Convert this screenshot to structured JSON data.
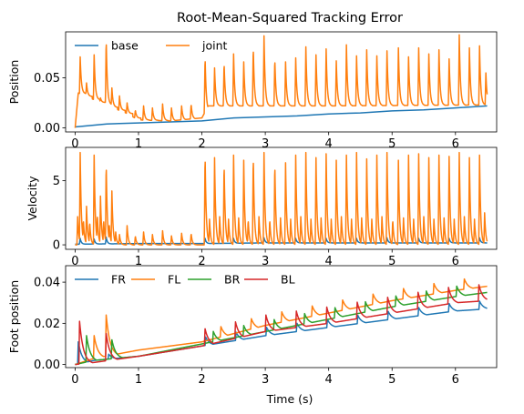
{
  "title": "Root-Mean-Squared Tracking Error",
  "xlabel": "Time (s)",
  "chart_data": [
    {
      "type": "line",
      "ylabel": "Position",
      "xlim": [
        -0.15,
        6.65
      ],
      "ylim": [
        -0.004,
        0.096
      ],
      "xticks": [
        0,
        1,
        2,
        3,
        4,
        5,
        6
      ],
      "yticks": [
        0.0,
        0.05
      ],
      "ytick_labels": [
        "0.00",
        "0.05"
      ],
      "legend_position": "top-left",
      "legend_columns": 2,
      "x_start": 0.0,
      "x_end": 6.5,
      "series": [
        {
          "name": "base",
          "color": "#1f77b4",
          "points": [
            [
              0.0,
              0.001
            ],
            [
              0.5,
              0.004
            ],
            [
              1.0,
              0.005
            ],
            [
              1.5,
              0.006
            ],
            [
              2.0,
              0.007
            ],
            [
              2.5,
              0.01
            ],
            [
              3.0,
              0.011
            ],
            [
              3.5,
              0.012
            ],
            [
              4.0,
              0.014
            ],
            [
              4.5,
              0.015
            ],
            [
              5.0,
              0.017
            ],
            [
              5.5,
              0.018
            ],
            [
              6.0,
              0.02
            ],
            [
              6.5,
              0.022
            ]
          ]
        },
        {
          "name": "joint",
          "color": "#ff7f0e",
          "baseline": [
            [
              0.0,
              0.0
            ],
            [
              0.05,
              0.035
            ],
            [
              0.6,
              0.02
            ],
            [
              0.8,
              0.015
            ],
            [
              1.0,
              0.008
            ],
            [
              1.5,
              0.007
            ],
            [
              2.0,
              0.01
            ],
            [
              2.1,
              0.022
            ],
            [
              4.0,
              0.022
            ],
            [
              6.5,
              0.023
            ]
          ],
          "peaks": [
            {
              "t": 0.08,
              "v": 0.071
            },
            {
              "t": 0.18,
              "v": 0.045
            },
            {
              "t": 0.3,
              "v": 0.073
            },
            {
              "t": 0.4,
              "v": 0.03
            },
            {
              "t": 0.49,
              "v": 0.09
            },
            {
              "t": 0.58,
              "v": 0.04
            },
            {
              "t": 0.7,
              "v": 0.032
            },
            {
              "t": 0.82,
              "v": 0.025
            },
            {
              "t": 0.95,
              "v": 0.018
            },
            {
              "t": 1.08,
              "v": 0.022
            },
            {
              "t": 1.22,
              "v": 0.02
            },
            {
              "t": 1.38,
              "v": 0.024
            },
            {
              "t": 1.52,
              "v": 0.02
            },
            {
              "t": 1.68,
              "v": 0.022
            },
            {
              "t": 1.83,
              "v": 0.024
            },
            {
              "t": 2.05,
              "v": 0.072
            },
            {
              "t": 2.2,
              "v": 0.06
            },
            {
              "t": 2.35,
              "v": 0.066
            },
            {
              "t": 2.5,
              "v": 0.074
            },
            {
              "t": 2.66,
              "v": 0.066
            },
            {
              "t": 2.81,
              "v": 0.082
            },
            {
              "t": 2.98,
              "v": 0.092
            },
            {
              "t": 3.15,
              "v": 0.07
            },
            {
              "t": 3.32,
              "v": 0.066
            },
            {
              "t": 3.48,
              "v": 0.07
            },
            {
              "t": 3.64,
              "v": 0.081
            },
            {
              "t": 3.8,
              "v": 0.073
            },
            {
              "t": 3.96,
              "v": 0.079
            },
            {
              "t": 4.12,
              "v": 0.067
            },
            {
              "t": 4.28,
              "v": 0.083
            },
            {
              "t": 4.44,
              "v": 0.072
            },
            {
              "t": 4.6,
              "v": 0.078
            },
            {
              "t": 4.76,
              "v": 0.072
            },
            {
              "t": 4.92,
              "v": 0.077
            },
            {
              "t": 5.1,
              "v": 0.08
            },
            {
              "t": 5.26,
              "v": 0.071
            },
            {
              "t": 5.42,
              "v": 0.08
            },
            {
              "t": 5.58,
              "v": 0.074
            },
            {
              "t": 5.74,
              "v": 0.078
            },
            {
              "t": 5.9,
              "v": 0.069
            },
            {
              "t": 6.06,
              "v": 0.093
            },
            {
              "t": 6.22,
              "v": 0.08
            },
            {
              "t": 6.38,
              "v": 0.082
            },
            {
              "t": 6.48,
              "v": 0.055
            }
          ]
        }
      ]
    },
    {
      "type": "line",
      "ylabel": "Velocity",
      "xlim": [
        -0.15,
        6.65
      ],
      "ylim": [
        -0.35,
        7.6
      ],
      "xticks": [
        0,
        1,
        2,
        3,
        4,
        5,
        6
      ],
      "yticks": [
        0,
        5
      ],
      "ytick_labels": [
        "0",
        "5"
      ],
      "x_start": 0.0,
      "x_end": 6.5,
      "series": [
        {
          "name": "base",
          "color": "#1f77b4",
          "points": [
            [
              0.0,
              0.05
            ],
            [
              1.0,
              0.1
            ],
            [
              2.0,
              0.1
            ],
            [
              3.0,
              0.15
            ],
            [
              4.0,
              0.15
            ],
            [
              5.0,
              0.15
            ],
            [
              6.0,
              0.15
            ],
            [
              6.5,
              0.15
            ]
          ],
          "peaks": [
            {
              "t": 0.08,
              "v": 0.5
            },
            {
              "t": 0.3,
              "v": 0.45
            },
            {
              "t": 0.49,
              "v": 0.6
            },
            {
              "t": 2.05,
              "v": 0.5
            },
            {
              "t": 2.5,
              "v": 0.5
            },
            {
              "t": 2.98,
              "v": 0.55
            },
            {
              "t": 3.48,
              "v": 0.5
            },
            {
              "t": 3.96,
              "v": 0.5
            },
            {
              "t": 4.44,
              "v": 0.5
            },
            {
              "t": 4.92,
              "v": 0.55
            },
            {
              "t": 5.42,
              "v": 0.5
            },
            {
              "t": 5.9,
              "v": 0.5
            },
            {
              "t": 6.38,
              "v": 0.55
            }
          ]
        },
        {
          "name": "joint",
          "color": "#ff7f0e",
          "baseline": [
            [
              0.0,
              0.0
            ],
            [
              6.5,
              0.0
            ]
          ],
          "peaks": [
            {
              "t": 0.04,
              "v": 2.2
            },
            {
              "t": 0.08,
              "v": 7.2
            },
            {
              "t": 0.13,
              "v": 2.0
            },
            {
              "t": 0.18,
              "v": 3.0
            },
            {
              "t": 0.23,
              "v": 1.8
            },
            {
              "t": 0.3,
              "v": 7.0
            },
            {
              "t": 0.35,
              "v": 2.4
            },
            {
              "t": 0.4,
              "v": 3.8
            },
            {
              "t": 0.45,
              "v": 2.0
            },
            {
              "t": 0.49,
              "v": 6.5
            },
            {
              "t": 0.54,
              "v": 1.5
            },
            {
              "t": 0.58,
              "v": 4.2
            },
            {
              "t": 0.64,
              "v": 1.0
            },
            {
              "t": 0.7,
              "v": 0.8
            },
            {
              "t": 0.82,
              "v": 1.5
            },
            {
              "t": 0.95,
              "v": 0.7
            },
            {
              "t": 1.08,
              "v": 1.0
            },
            {
              "t": 1.22,
              "v": 0.8
            },
            {
              "t": 1.38,
              "v": 1.1
            },
            {
              "t": 1.52,
              "v": 0.7
            },
            {
              "t": 1.68,
              "v": 0.9
            },
            {
              "t": 1.83,
              "v": 0.9
            },
            {
              "t": 2.05,
              "v": 7.2
            },
            {
              "t": 2.12,
              "v": 2.0
            },
            {
              "t": 2.2,
              "v": 6.8
            },
            {
              "t": 2.28,
              "v": 2.2
            },
            {
              "t": 2.35,
              "v": 6.5
            },
            {
              "t": 2.42,
              "v": 2.0
            },
            {
              "t": 2.5,
              "v": 7.0
            },
            {
              "t": 2.58,
              "v": 2.1
            },
            {
              "t": 2.66,
              "v": 6.6
            },
            {
              "t": 2.73,
              "v": 2.0
            },
            {
              "t": 2.81,
              "v": 7.1
            },
            {
              "t": 2.9,
              "v": 2.2
            },
            {
              "t": 2.98,
              "v": 7.2
            },
            {
              "t": 3.07,
              "v": 2.0
            },
            {
              "t": 3.15,
              "v": 6.5
            },
            {
              "t": 3.24,
              "v": 2.1
            },
            {
              "t": 3.32,
              "v": 6.4
            },
            {
              "t": 3.4,
              "v": 2.0
            },
            {
              "t": 3.48,
              "v": 7.0
            },
            {
              "t": 3.56,
              "v": 2.2
            },
            {
              "t": 3.64,
              "v": 7.2
            },
            {
              "t": 3.72,
              "v": 2.0
            },
            {
              "t": 3.8,
              "v": 6.8
            },
            {
              "t": 3.88,
              "v": 2.1
            },
            {
              "t": 3.96,
              "v": 7.1
            },
            {
              "t": 4.04,
              "v": 2.0
            },
            {
              "t": 4.12,
              "v": 6.6
            },
            {
              "t": 4.2,
              "v": 2.2
            },
            {
              "t": 4.28,
              "v": 7.0
            },
            {
              "t": 4.36,
              "v": 2.0
            },
            {
              "t": 4.44,
              "v": 7.2
            },
            {
              "t": 4.52,
              "v": 2.1
            },
            {
              "t": 4.6,
              "v": 6.7
            },
            {
              "t": 4.68,
              "v": 2.0
            },
            {
              "t": 4.76,
              "v": 7.0
            },
            {
              "t": 4.84,
              "v": 2.2
            },
            {
              "t": 4.92,
              "v": 7.2
            },
            {
              "t": 5.01,
              "v": 2.0
            },
            {
              "t": 5.1,
              "v": 6.6
            },
            {
              "t": 5.18,
              "v": 2.1
            },
            {
              "t": 5.26,
              "v": 7.0
            },
            {
              "t": 5.34,
              "v": 2.0
            },
            {
              "t": 5.42,
              "v": 7.1
            },
            {
              "t": 5.5,
              "v": 2.2
            },
            {
              "t": 5.58,
              "v": 6.8
            },
            {
              "t": 5.66,
              "v": 2.0
            },
            {
              "t": 5.74,
              "v": 7.0
            },
            {
              "t": 5.82,
              "v": 2.1
            },
            {
              "t": 5.9,
              "v": 6.9
            },
            {
              "t": 5.98,
              "v": 2.0
            },
            {
              "t": 6.06,
              "v": 7.2
            },
            {
              "t": 6.14,
              "v": 2.2
            },
            {
              "t": 6.22,
              "v": 6.8
            },
            {
              "t": 6.3,
              "v": 2.0
            },
            {
              "t": 6.38,
              "v": 7.0
            },
            {
              "t": 6.46,
              "v": 2.5
            }
          ]
        }
      ]
    },
    {
      "type": "line",
      "ylabel": "Foot position",
      "xlim": [
        -0.15,
        6.65
      ],
      "ylim": [
        -0.0015,
        0.048
      ],
      "xticks": [
        0,
        1,
        2,
        3,
        4,
        5,
        6
      ],
      "yticks": [
        0.0,
        0.02,
        0.04
      ],
      "ytick_labels": [
        "0.00",
        "0.02",
        "0.04"
      ],
      "legend_position": "top-left",
      "legend_columns": 4,
      "x_start": 0.0,
      "x_end": 6.5,
      "series": [
        {
          "name": "FR",
          "color": "#1f77b4",
          "baseline": [
            [
              0.0,
              0.0
            ],
            [
              0.3,
              0.002
            ],
            [
              1.0,
              0.004
            ],
            [
              2.0,
              0.009
            ],
            [
              3.0,
              0.014
            ],
            [
              4.0,
              0.018
            ],
            [
              5.0,
              0.022
            ],
            [
              6.0,
              0.026
            ],
            [
              6.5,
              0.027
            ]
          ],
          "step": 0.48,
          "step_offset": 0.06,
          "peak_add": 0.004,
          "first_peaks": [
            {
              "t": 0.05,
              "v": 0.011
            },
            {
              "t": 0.53,
              "v": 0.005
            }
          ]
        },
        {
          "name": "FL",
          "color": "#ff7f0e",
          "baseline": [
            [
              0.0,
              0.0
            ],
            [
              0.3,
              0.003
            ],
            [
              1.0,
              0.007
            ],
            [
              2.0,
              0.011
            ],
            [
              3.0,
              0.019
            ],
            [
              4.0,
              0.025
            ],
            [
              5.0,
              0.031
            ],
            [
              6.0,
              0.036
            ],
            [
              6.5,
              0.038
            ]
          ],
          "step": 0.48,
          "step_offset": 0.3,
          "peak_add": 0.005,
          "first_peaks": [
            {
              "t": 0.3,
              "v": 0.014
            },
            {
              "t": 0.49,
              "v": 0.024
            }
          ]
        },
        {
          "name": "BR",
          "color": "#2ca02c",
          "baseline": [
            [
              0.0,
              0.0
            ],
            [
              0.3,
              0.002
            ],
            [
              1.0,
              0.004
            ],
            [
              2.0,
              0.01
            ],
            [
              3.0,
              0.016
            ],
            [
              4.0,
              0.022
            ],
            [
              5.0,
              0.028
            ],
            [
              6.0,
              0.033
            ],
            [
              6.5,
              0.035
            ]
          ],
          "step": 0.48,
          "step_offset": 0.18,
          "peak_add": 0.005,
          "first_peaks": [
            {
              "t": 0.18,
              "v": 0.014
            },
            {
              "t": 0.58,
              "v": 0.012
            }
          ]
        },
        {
          "name": "BL",
          "color": "#d62728",
          "baseline": [
            [
              0.0,
              0.0
            ],
            [
              0.3,
              0.001
            ],
            [
              1.0,
              0.004
            ],
            [
              2.0,
              0.009
            ],
            [
              3.0,
              0.016
            ],
            [
              4.0,
              0.02
            ],
            [
              5.0,
              0.025
            ],
            [
              6.0,
              0.03
            ],
            [
              6.5,
              0.031
            ]
          ],
          "step": 0.48,
          "step_offset": 0.05,
          "peak_add": 0.008,
          "first_peaks": [
            {
              "t": 0.07,
              "v": 0.021
            },
            {
              "t": 0.49,
              "v": 0.015
            }
          ]
        }
      ]
    }
  ]
}
